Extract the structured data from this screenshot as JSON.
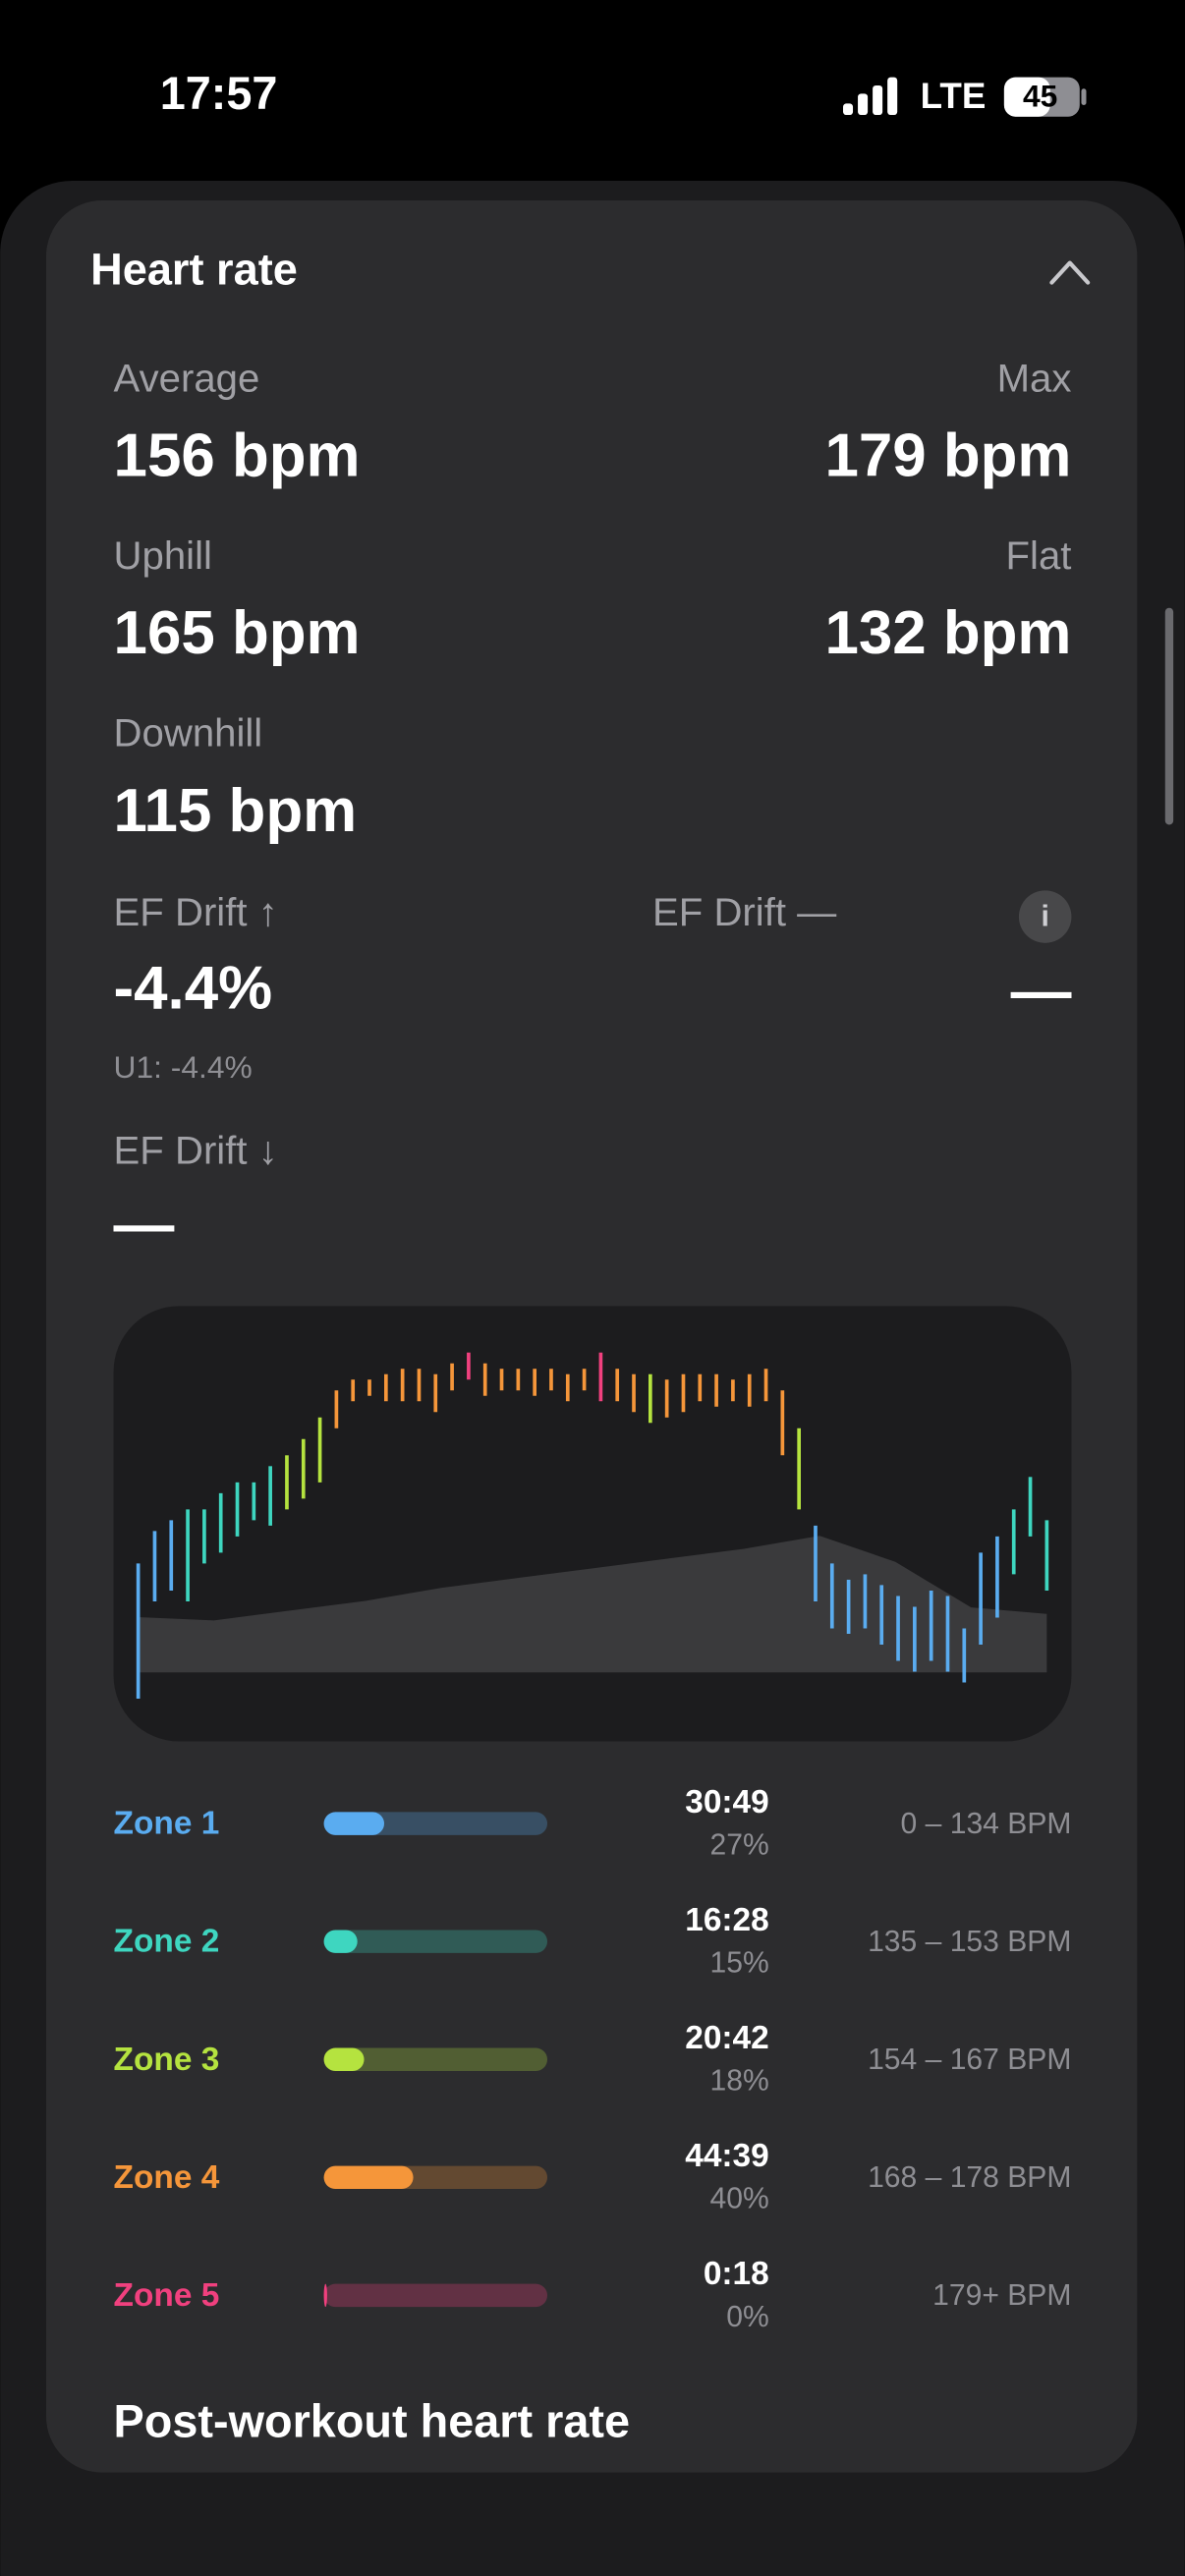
{
  "status_bar": {
    "time": "17:57",
    "network": "LTE",
    "battery": "45"
  },
  "card": {
    "title": "Heart rate",
    "stats": [
      {
        "label": "Average",
        "value": "156 bpm"
      },
      {
        "label": "Max",
        "value": "179 bpm"
      },
      {
        "label": "Uphill",
        "value": "165 bpm"
      },
      {
        "label": "Flat",
        "value": "132 bpm"
      },
      {
        "label": "Downhill",
        "value": "115 bpm"
      }
    ],
    "ef_drift": [
      {
        "label": "EF Drift ↑",
        "value": "-4.4%",
        "note": "U1: -4.4%"
      },
      {
        "label": "EF Drift —",
        "value": "—"
      },
      {
        "label": "EF Drift ↓",
        "value": "—"
      }
    ],
    "info_icon": "i",
    "zones": [
      {
        "name": "Zone 1",
        "color": "#5aacf0",
        "time": "30:49",
        "percent": {
          "value": 27,
          "label": "27%"
        },
        "range": "0 – 134 BPM"
      },
      {
        "name": "Zone 2",
        "color": "#3ed6c0",
        "time": "16:28",
        "percent": {
          "value": 15,
          "label": "15%"
        },
        "range": "135 – 153 BPM"
      },
      {
        "name": "Zone 3",
        "color": "#b5e33f",
        "time": "20:42",
        "percent": {
          "value": 18,
          "label": "18%"
        },
        "range": "154 – 167 BPM"
      },
      {
        "name": "Zone 4",
        "color": "#f5963a",
        "time": "44:39",
        "percent": {
          "value": 40,
          "label": "40%"
        },
        "range": "168 – 178 BPM"
      },
      {
        "name": "Zone 5",
        "color": "#f0407e",
        "time": "0:18",
        "percent": {
          "value": 0,
          "label": "0%"
        },
        "range": "179+ BPM"
      }
    ],
    "next_section": "Post-workout heart rate"
  },
  "chart_data": {
    "type": "range-bar",
    "ylim": [
      115,
      180
    ],
    "lows": [
      115,
      133,
      135,
      133,
      140,
      142,
      145,
      148,
      147,
      150,
      152,
      155,
      165,
      170,
      171,
      170,
      170,
      170,
      168,
      172,
      174,
      171,
      172,
      172,
      171,
      172,
      170,
      172,
      170,
      170,
      168,
      166,
      167,
      168,
      170,
      169,
      170,
      169,
      170,
      160,
      150,
      133,
      128,
      127,
      128,
      125,
      122,
      120,
      122,
      120,
      118,
      125,
      130,
      138,
      145,
      135
    ],
    "highs": [
      140,
      146,
      148,
      150,
      150,
      153,
      155,
      155,
      158,
      160,
      163,
      167,
      172,
      174,
      174,
      175,
      176,
      176,
      175,
      177,
      179,
      177,
      176,
      176,
      176,
      176,
      175,
      176,
      179,
      176,
      175,
      175,
      174,
      175,
      175,
      175,
      174,
      175,
      176,
      172,
      165,
      147,
      140,
      137,
      138,
      136,
      134,
      132,
      135,
      134,
      128,
      142,
      145,
      150,
      156,
      148
    ],
    "bar_zones": [
      0,
      0,
      0,
      1,
      1,
      1,
      1,
      1,
      1,
      2,
      2,
      2,
      3,
      3,
      3,
      3,
      3,
      3,
      3,
      3,
      4,
      3,
      3,
      3,
      3,
      3,
      3,
      3,
      4,
      3,
      3,
      2,
      3,
      3,
      3,
      3,
      3,
      3,
      3,
      3,
      2,
      0,
      0,
      0,
      0,
      0,
      0,
      0,
      0,
      0,
      0,
      0,
      0,
      1,
      1,
      1
    ],
    "area": {
      "values": [
        17,
        16,
        19,
        22,
        26,
        29,
        32,
        35,
        38,
        42,
        34,
        20,
        18
      ],
      "ylim": [
        0,
        100
      ],
      "color": "#3a3a3c"
    }
  }
}
